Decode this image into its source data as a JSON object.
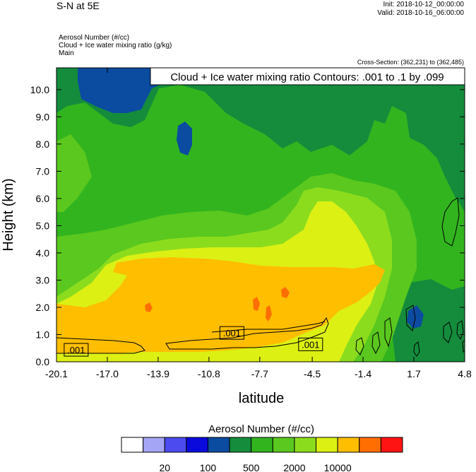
{
  "header": {
    "title": "S-N at 5E",
    "init": "Init: 2018-10-12_00:00:00",
    "valid": "Valid: 2018-10-16_06:00:00",
    "field1": "Aerosol Number   (#/cc)",
    "field2": "Cloud + Ice water mixing ratio   (g/kg)",
    "field3": "Main",
    "cross_section": "Cross-Section: (362,231) to (362,485)"
  },
  "chart_data": {
    "type": "heatmap",
    "title": "S-N at 5E",
    "xlabel": "latitude",
    "ylabel": "Height (km)",
    "xlim": [
      -20.1,
      4.8
    ],
    "ylim": [
      0.0,
      10.8
    ],
    "x_ticks": [
      -20.1,
      -17.0,
      -13.9,
      -10.8,
      -7.7,
      -4.5,
      -1.4,
      1.7,
      4.8
    ],
    "x_tick_labels": [
      "-20.1",
      "-17.0",
      "-13.9",
      "-10.8",
      "-7.7",
      "-4.5",
      "-1.4",
      "1.7",
      "4.8"
    ],
    "y_ticks": [
      0,
      1,
      2,
      3,
      4,
      5,
      6,
      7,
      8,
      9,
      10
    ],
    "y_tick_labels": [
      "0.0",
      "1.0",
      "2.0",
      "3.0",
      "4.0",
      "5.0",
      "6.0",
      "7.0",
      "8.0",
      "9.0",
      "10.0"
    ],
    "contour_legend": "Cloud + Ice water mixing ratio Contours: .001 to .1 by .099",
    "contour_labels": [
      {
        "text": ".001",
        "x": -18.9,
        "y": 0.44
      },
      {
        "text": ".001",
        "x": -9.4,
        "y": 1.06
      },
      {
        "text": ".001",
        "x": -4.6,
        "y": 0.64
      }
    ],
    "colorbar": {
      "title": "Aerosol Number  (#/cc)",
      "colors": [
        "#ffffff",
        "#a5a5f5",
        "#4b4bf0",
        "#0a0adc",
        "#0b4ba0",
        "#148c3c",
        "#32b41e",
        "#5ac81e",
        "#8cdc1e",
        "#dcf014",
        "#ffbe00",
        "#ff6e00",
        "#ff1414"
      ],
      "labels": [
        "20",
        "100",
        "500",
        "2000",
        "10000"
      ],
      "label_after_box": [
        2,
        4,
        6,
        8,
        10
      ]
    },
    "field_colors": {
      "c_dark_blue": "#0b4ba0",
      "c_dark_green": "#148c3c",
      "c_green": "#32b41e",
      "c_light_green": "#5ac81e",
      "c_yellow_green": "#8cdc1e",
      "c_yellow": "#dcf014",
      "c_orange": "#ffbe00",
      "c_dark_orange": "#ff6e00"
    }
  }
}
